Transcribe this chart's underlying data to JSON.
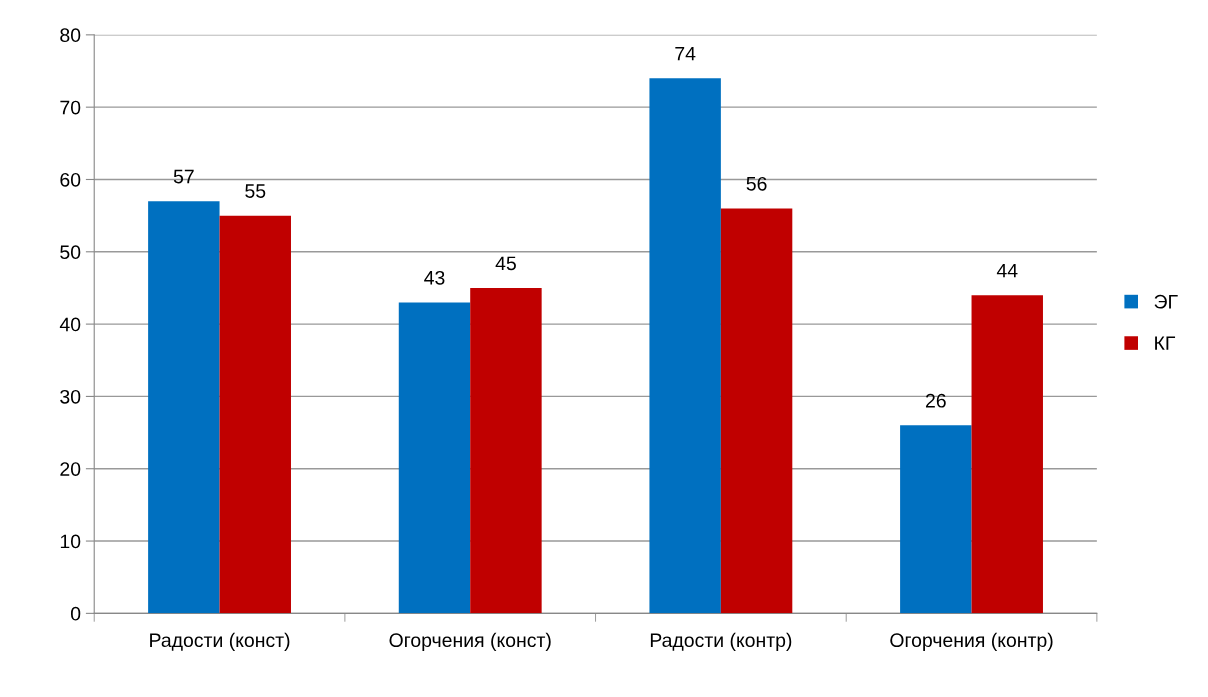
{
  "chart_data": {
    "type": "bar",
    "categories": [
      "Радости (конст)",
      "Огорчения (конст)",
      "Радости (контр)",
      "Огорчения (контр)"
    ],
    "series": [
      {
        "name": "ЭГ",
        "color": "#0070c0",
        "values": [
          57,
          43,
          74,
          26
        ]
      },
      {
        "name": "КГ",
        "color": "#c00000",
        "values": [
          55,
          45,
          56,
          44
        ]
      }
    ],
    "ylim": [
      0,
      80
    ],
    "yticks": [
      0,
      10,
      20,
      30,
      40,
      50,
      60,
      70,
      80
    ],
    "grid": "y",
    "legend": "right",
    "data_labels": true
  }
}
